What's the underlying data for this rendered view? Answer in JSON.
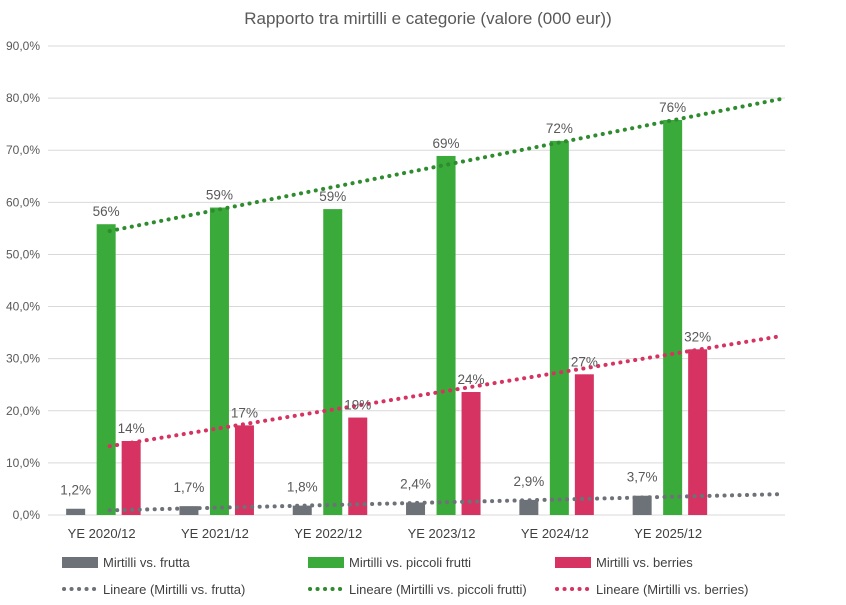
{
  "chart_data": {
    "type": "bar",
    "title": "Rapporto tra mirtilli e categorie (valore (000 eur))",
    "xlabel": "",
    "ylabel": "",
    "ylim": [
      0,
      90
    ],
    "y_ticks": [
      "0,0%",
      "10,0%",
      "20,0%",
      "30,0%",
      "40,0%",
      "50,0%",
      "60,0%",
      "70,0%",
      "80,0%",
      "90,0%"
    ],
    "grid": true,
    "legend_position": "bottom",
    "categories": [
      "YE 2020/12",
      "YE 2021/12",
      "YE 2022/12",
      "YE 2023/12",
      "YE 2024/12",
      "YE 2025/12"
    ],
    "series": [
      {
        "name": "Mirtilli vs. frutta",
        "color": "#6d7278",
        "values": [
          1.2,
          1.7,
          1.8,
          2.4,
          2.9,
          3.7
        ],
        "labels": [
          "1,2%",
          "1,7%",
          "1,8%",
          "2,4%",
          "2,9%",
          "3,7%"
        ]
      },
      {
        "name": "Mirtilli vs. piccoli frutti",
        "color": "#3aaa3a",
        "values": [
          55.8,
          59.0,
          58.7,
          68.9,
          71.8,
          75.8
        ],
        "labels": [
          "56%",
          "59%",
          "59%",
          "69%",
          "72%",
          "76%"
        ]
      },
      {
        "name": "Mirtilli vs. berries",
        "color": "#d63362",
        "values": [
          14.2,
          17.2,
          18.7,
          23.6,
          27.0,
          31.8
        ],
        "labels": [
          "14%",
          "17%",
          "19%",
          "24%",
          "27%",
          "32%"
        ]
      }
    ],
    "trendlines": [
      {
        "name": "Lineare (Mirtilli vs. frutta)",
        "color": "#6d7278",
        "start": 0.9,
        "end": 4.0
      },
      {
        "name": "Lineare (Mirtilli vs. piccoli frutti)",
        "color": "#2e8b2e",
        "start": 54.5,
        "end": 79.8
      },
      {
        "name": "Lineare (Mirtilli vs. berries)",
        "color": "#d63362",
        "start": 13.2,
        "end": 34.3
      }
    ]
  }
}
